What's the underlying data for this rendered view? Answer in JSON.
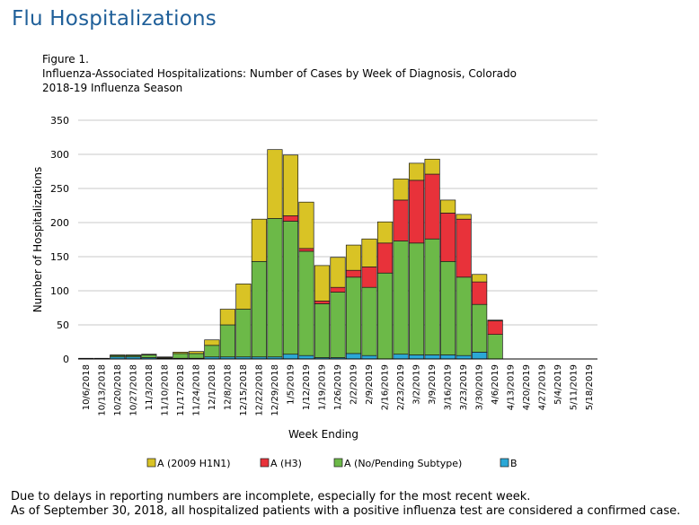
{
  "page": {
    "title": "Flu Hospitalizations"
  },
  "figure": {
    "label": "Figure 1.",
    "title_line1": "Influenza-Associated Hospitalizations: Number of  Cases by Week of Diagnosis, Colorado",
    "title_line2": "2018-19  Influenza Season"
  },
  "footnotes": {
    "line1": "Due to delays in reporting numbers are incomplete, especially for the most recent week.",
    "line2": "As of September 30, 2018, all hospitalized patients with a positive influenza test are considered a confirmed case."
  },
  "colors": {
    "h1n1": "#d9c325",
    "h3": "#e8323a",
    "nopending": "#6cb948",
    "b": "#2ba8d6",
    "grid": "#c8c8c8"
  },
  "chart_data": {
    "type": "bar",
    "stacked": true,
    "xlabel": "Week Ending",
    "ylabel": "Number of Hospitalizations",
    "ylim": [
      0,
      350
    ],
    "yticks": [
      0,
      50,
      100,
      150,
      200,
      250,
      300,
      350
    ],
    "grid": true,
    "legend_position": "bottom",
    "categories": [
      "10/6/2018",
      "10/13/2018",
      "10/20/2018",
      "10/27/2018",
      "11/3/2018",
      "11/10/2018",
      "11/17/2018",
      "11/24/2018",
      "12/1/2018",
      "12/8/2018",
      "12/15/2018",
      "12/22/2018",
      "12/29/2018",
      "1/5/2019",
      "1/12/2019",
      "1/19/2019",
      "1/26/2019",
      "2/2/2019",
      "2/9/2019",
      "2/16/2019",
      "2/23/2019",
      "3/2/2019",
      "3/9/2019",
      "3/16/2019",
      "3/23/2019",
      "3/30/2019",
      "4/6/2019",
      "4/13/2019",
      "4/20/2019",
      "4/27/2019",
      "5/4/2019",
      "5/11/2019",
      "5/18/2019"
    ],
    "series": [
      {
        "name": "B",
        "color_key": "b",
        "values": [
          0,
          0,
          3,
          3,
          2,
          1,
          1,
          1,
          3,
          3,
          3,
          3,
          3,
          7,
          5,
          2,
          2,
          8,
          5,
          0,
          7,
          6,
          6,
          6,
          5,
          10,
          0,
          0,
          0,
          0,
          0,
          0,
          0
        ]
      },
      {
        "name": "A (No/Pending Subtype)",
        "color_key": "nopending",
        "values": [
          1,
          1,
          2,
          2,
          4,
          1,
          7,
          7,
          17,
          47,
          70,
          140,
          203,
          195,
          153,
          79,
          96,
          112,
          100,
          126,
          166,
          164,
          170,
          137,
          115,
          70,
          36,
          0,
          0,
          0,
          0,
          0,
          0
        ]
      },
      {
        "name": "A (H3)",
        "color_key": "h3",
        "values": [
          0,
          0,
          0,
          0,
          0,
          0,
          0,
          0,
          0,
          0,
          0,
          0,
          0,
          8,
          4,
          4,
          7,
          10,
          30,
          44,
          60,
          92,
          95,
          71,
          85,
          33,
          20,
          0,
          0,
          0,
          0,
          0,
          0
        ]
      },
      {
        "name": "A (2009 H1N1)",
        "color_key": "h1n1",
        "values": [
          0,
          0,
          1,
          1,
          1,
          1,
          2,
          3,
          8,
          23,
          37,
          62,
          101,
          89,
          68,
          52,
          44,
          37,
          41,
          31,
          31,
          25,
          22,
          19,
          7,
          11,
          1,
          0,
          0,
          0,
          0,
          0,
          0
        ]
      }
    ],
    "legend_order": [
      "A (2009 H1N1)",
      "A (H3)",
      "A (No/Pending Subtype)",
      "B"
    ]
  }
}
